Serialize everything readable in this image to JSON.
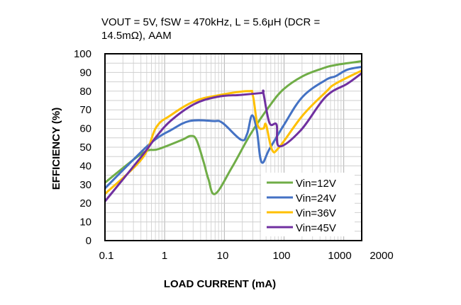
{
  "chart_data": {
    "type": "line",
    "title_lines": [
      "VOUT = 5V, fSW = 470kHz, L = 5.6μH (DCR =",
      "14.5mΩ), AAM"
    ],
    "xlabel": "LOAD CURRENT (mA)",
    "ylabel": "EFFICIENCY (%)",
    "xscale": "log",
    "xlim": [
      0.1,
      2000
    ],
    "ylim": [
      0,
      100
    ],
    "xticks": [
      "0.1",
      "1",
      "10",
      "100",
      "1000",
      "2000"
    ],
    "yticks": [
      "0",
      "10",
      "20",
      "30",
      "40",
      "50",
      "60",
      "70",
      "80",
      "90",
      "100"
    ],
    "grid": true,
    "legend_position": "bottom-right",
    "series": [
      {
        "name": "Vin=12V",
        "color": "#70AD47",
        "x": [
          0.1,
          0.42,
          0.79,
          1.98,
          2.7,
          3.4,
          4.5,
          5.4,
          7,
          13.3,
          27.5,
          57,
          98,
          205,
          426,
          730,
          2000
        ],
        "y": [
          31,
          46.7,
          49,
          54,
          56,
          54,
          42,
          33,
          25,
          39,
          57,
          72,
          81,
          88,
          92,
          94,
          96
        ]
      },
      {
        "name": "Vin=24V",
        "color": "#4472C4",
        "x": [
          0.1,
          0.42,
          0.76,
          1.25,
          2.6,
          6.5,
          9.3,
          19,
          24,
          29,
          35,
          42,
          57,
          100,
          205,
          500,
          730,
          1150,
          2000
        ],
        "y": [
          28,
          48,
          55,
          59,
          64,
          64,
          63,
          54,
          57,
          67,
          59,
          42,
          49,
          62,
          77,
          86,
          88,
          91.5,
          93
        ]
      },
      {
        "name": "Vin=36V",
        "color": "#FFC000",
        "x": [
          0.1,
          0.42,
          0.72,
          1.25,
          3.1,
          7.7,
          25,
          30,
          36,
          45,
          50,
          63,
          83,
          205,
          500,
          730,
          2000
        ],
        "y": [
          25,
          44,
          60.6,
          67,
          74.5,
          77.7,
          80,
          77.7,
          62,
          60,
          62,
          48.6,
          50,
          67,
          79.5,
          84,
          91
        ]
      },
      {
        "name": "Vin=45V",
        "color": "#7030A0",
        "x": [
          0.1,
          0.42,
          0.72,
          1.25,
          3.1,
          7.7,
          19,
          42,
          45,
          57,
          75,
          83,
          190,
          500,
          1150,
          2000
        ],
        "y": [
          21,
          45.5,
          55.5,
          64,
          73,
          77,
          78,
          79,
          79,
          63,
          62,
          50.5,
          59,
          77,
          84,
          89.6
        ]
      }
    ]
  }
}
